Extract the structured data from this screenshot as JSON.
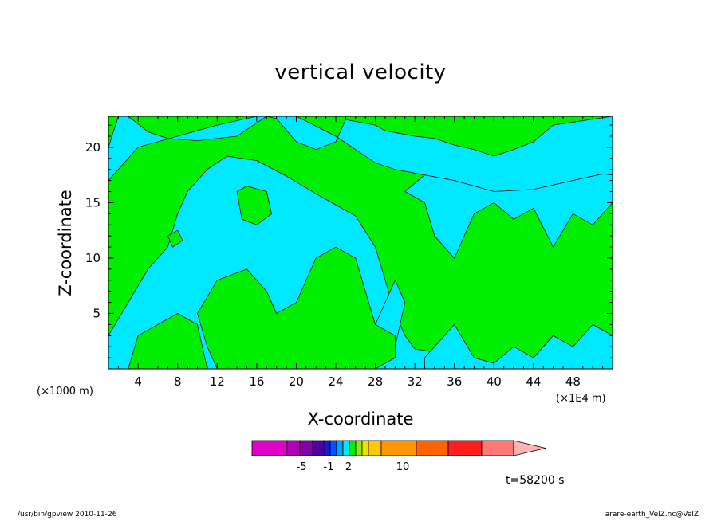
{
  "chart_data": {
    "type": "heatmap",
    "title": "vertical velocity",
    "xlabel": "X-coordinate",
    "ylabel": "Z-coordinate",
    "x_unit_left": "(×1000 m)",
    "x_unit_right": "(×1E4 m)",
    "x_ticks": [
      4,
      8,
      12,
      16,
      20,
      24,
      28,
      32,
      36,
      40,
      44,
      48
    ],
    "y_ticks": [
      5,
      10,
      15,
      20
    ],
    "xlim": [
      1,
      52
    ],
    "ylim": [
      0,
      22.8
    ],
    "colors": {
      "negative_small": "#00e8ff",
      "positive_small": "#00ee00",
      "contour": "#1a1a1a"
    },
    "field_cyan_regions": [
      [
        [
          1,
          17
        ],
        [
          4,
          20
        ],
        [
          8,
          21
        ],
        [
          12,
          22
        ],
        [
          16,
          22.8
        ],
        [
          20,
          22.8
        ],
        [
          24,
          21
        ],
        [
          28,
          18.6
        ],
        [
          30,
          18
        ],
        [
          33,
          17.5
        ],
        [
          36,
          17
        ],
        [
          40,
          16
        ],
        [
          44,
          16.2
        ],
        [
          48,
          17
        ],
        [
          51,
          17.6
        ],
        [
          52,
          17.5
        ],
        [
          52,
          22.8
        ],
        [
          46,
          22
        ],
        [
          44,
          20.5
        ],
        [
          42,
          19.8
        ],
        [
          40,
          19.2
        ],
        [
          38,
          19.8
        ],
        [
          36,
          20.2
        ],
        [
          34,
          20.8
        ],
        [
          32,
          21
        ],
        [
          29,
          21.5
        ],
        [
          28,
          22
        ],
        [
          25,
          22.5
        ],
        [
          24,
          20.5
        ],
        [
          22,
          19.8
        ],
        [
          20,
          20.5
        ],
        [
          18,
          22.6
        ],
        [
          17,
          22.8
        ],
        [
          14,
          21
        ],
        [
          10,
          20.6
        ],
        [
          7,
          20.8
        ],
        [
          5,
          21.4
        ],
        [
          3,
          22.8
        ],
        [
          2,
          22.8
        ],
        [
          1,
          20
        ]
      ],
      [
        [
          1,
          3
        ],
        [
          3,
          6
        ],
        [
          5,
          9
        ],
        [
          7,
          11
        ],
        [
          8,
          14
        ],
        [
          9,
          16
        ],
        [
          11,
          18
        ],
        [
          13,
          19.2
        ],
        [
          16,
          18.8
        ],
        [
          19,
          17.4
        ],
        [
          22,
          15.8
        ],
        [
          26,
          13.8
        ],
        [
          28,
          11
        ],
        [
          30,
          5
        ],
        [
          31,
          3
        ],
        [
          32,
          1.8
        ],
        [
          34,
          1.5
        ],
        [
          36,
          1
        ],
        [
          36,
          0
        ],
        [
          1,
          0
        ]
      ],
      [
        [
          33,
          1
        ],
        [
          36,
          4
        ],
        [
          38,
          1
        ],
        [
          40,
          0.5
        ],
        [
          42,
          2
        ],
        [
          44,
          1
        ],
        [
          46,
          3
        ],
        [
          48,
          2
        ],
        [
          50,
          4
        ],
        [
          52,
          3
        ],
        [
          52,
          0
        ],
        [
          33,
          0
        ]
      ],
      [
        [
          31,
          16
        ],
        [
          33,
          15
        ],
        [
          34,
          12
        ],
        [
          36,
          10
        ],
        [
          38,
          14
        ],
        [
          40,
          15
        ],
        [
          42,
          13.5
        ],
        [
          44,
          14.5
        ],
        [
          46,
          11
        ],
        [
          48,
          14
        ],
        [
          50,
          13
        ],
        [
          52,
          15
        ],
        [
          52,
          17.5
        ],
        [
          51,
          17.6
        ],
        [
          48,
          17
        ],
        [
          44,
          16.2
        ],
        [
          40,
          16
        ],
        [
          36,
          17
        ],
        [
          33,
          17.5
        ]
      ],
      [
        [
          26,
          3
        ],
        [
          28,
          4
        ],
        [
          30,
          8
        ],
        [
          31,
          6
        ],
        [
          30,
          2
        ],
        [
          28,
          1.5
        ]
      ]
    ],
    "field_green_islands": [
      [
        [
          14,
          16
        ],
        [
          15,
          16.5
        ],
        [
          17,
          16
        ],
        [
          17.5,
          14
        ],
        [
          16,
          13
        ],
        [
          14.5,
          13.5
        ]
      ],
      [
        [
          7,
          12
        ],
        [
          8,
          12.5
        ],
        [
          8.5,
          11.6
        ],
        [
          7.5,
          11
        ]
      ],
      [
        [
          12,
          8
        ],
        [
          15,
          9
        ],
        [
          17,
          7
        ],
        [
          18,
          5
        ],
        [
          20,
          6
        ],
        [
          22,
          10
        ],
        [
          24,
          11
        ],
        [
          26,
          10
        ],
        [
          27,
          7
        ],
        [
          28,
          4
        ],
        [
          30,
          3
        ],
        [
          30,
          1
        ],
        [
          28,
          0
        ],
        [
          12,
          0
        ],
        [
          11,
          2
        ],
        [
          10,
          5
        ]
      ],
      [
        [
          4,
          3
        ],
        [
          6,
          4
        ],
        [
          8,
          5
        ],
        [
          10,
          4
        ],
        [
          11,
          0
        ],
        [
          3,
          0
        ]
      ]
    ],
    "colorbar_labels": [
      "-5",
      "-1",
      "2",
      "10"
    ],
    "colorbar_colors": [
      "#e100c8",
      "#b400b4",
      "#8200aa",
      "#5000a0",
      "#1e14dc",
      "#0050ff",
      "#00a0ff",
      "#00e8ff",
      "#00ee00",
      "#96e600",
      "#e6e600",
      "#ffc800",
      "#ff9600",
      "#ff6400",
      "#ff1e1e",
      "#ff7878",
      "#ffb4b4"
    ],
    "time_label": "t=58200 s",
    "grid": false
  },
  "footer": {
    "left": "/usr/bin/gpview   2010-11-26",
    "right": "arare-earth_VelZ.nc@VelZ"
  }
}
